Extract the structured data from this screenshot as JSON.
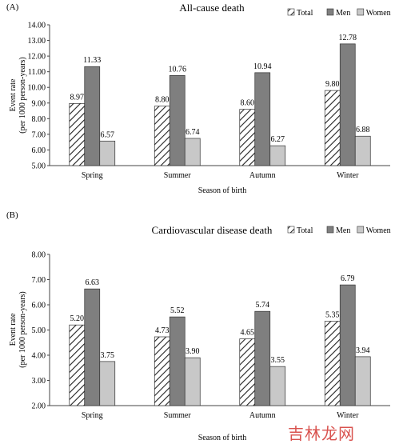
{
  "chart_data": [
    {
      "type": "bar",
      "panel_label": "(A)",
      "title": "All-cause death",
      "xlabel": "Season of birth",
      "ylabel": [
        "Event rate",
        "(per 1000 person-years)"
      ],
      "ylim": [
        5.0,
        14.0
      ],
      "ystep": 1.0,
      "yticks": [
        "5.00",
        "6.00",
        "7.00",
        "8.00",
        "9.00",
        "10.00",
        "11.00",
        "12.00",
        "13.00",
        "14.00"
      ],
      "categories": [
        "Spring",
        "Summer",
        "Autumn",
        "Winter"
      ],
      "series": [
        {
          "name": "Total",
          "values": [
            8.97,
            8.8,
            8.6,
            9.8
          ],
          "labels": [
            "8.97",
            "8.80",
            "8.60",
            "9.80"
          ],
          "style": "hatched",
          "color": "#ffffff"
        },
        {
          "name": "Men",
          "values": [
            11.33,
            10.76,
            10.94,
            12.78
          ],
          "labels": [
            "11.33",
            "10.76",
            "10.94",
            "12.78"
          ],
          "style": "solid",
          "color": "#7f7f7f"
        },
        {
          "name": "Women",
          "values": [
            6.57,
            6.74,
            6.27,
            6.88
          ],
          "labels": [
            "6.57",
            "6.74",
            "6.27",
            "6.88"
          ],
          "style": "solid",
          "color": "#c8c8c8"
        }
      ],
      "legend_position": "top-right",
      "grid": false
    },
    {
      "type": "bar",
      "panel_label": "(B)",
      "title": "Cardiovascular disease death",
      "xlabel": "Season of birth",
      "ylabel": [
        "Event rate",
        "(per 1000 person-years)"
      ],
      "ylim": [
        2.0,
        8.0
      ],
      "ystep": 1.0,
      "yticks": [
        "2.00",
        "3.00",
        "4.00",
        "5.00",
        "6.00",
        "7.00",
        "8.00"
      ],
      "categories": [
        "Spring",
        "Summer",
        "Autumn",
        "Winter"
      ],
      "series": [
        {
          "name": "Total",
          "values": [
            5.2,
            4.73,
            4.65,
            5.35
          ],
          "labels": [
            "5.20",
            "4.73",
            "4.65",
            "5.35"
          ],
          "style": "hatched",
          "color": "#ffffff"
        },
        {
          "name": "Men",
          "values": [
            6.63,
            5.52,
            5.74,
            6.79
          ],
          "labels": [
            "6.63",
            "5.52",
            "5.74",
            "6.79"
          ],
          "style": "solid",
          "color": "#7f7f7f"
        },
        {
          "name": "Women",
          "values": [
            3.75,
            3.9,
            3.55,
            3.94
          ],
          "labels": [
            "3.75",
            "3.90",
            "3.55",
            "3.94"
          ],
          "style": "solid",
          "color": "#c8c8c8"
        }
      ],
      "legend_position": "top-right",
      "grid": false
    }
  ],
  "watermark": "吉林龙网"
}
